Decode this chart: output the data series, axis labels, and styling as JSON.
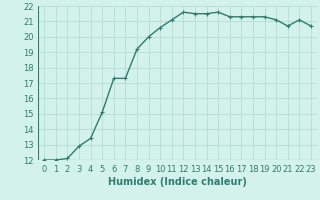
{
  "x": [
    0,
    1,
    2,
    3,
    4,
    5,
    6,
    7,
    8,
    9,
    10,
    11,
    12,
    13,
    14,
    15,
    16,
    17,
    18,
    19,
    20,
    21,
    22,
    23
  ],
  "y": [
    12.0,
    12.0,
    12.1,
    12.9,
    13.4,
    15.1,
    17.3,
    17.3,
    19.2,
    20.0,
    20.6,
    21.1,
    21.6,
    21.5,
    21.5,
    21.6,
    21.3,
    21.3,
    21.3,
    21.3,
    21.1,
    20.7,
    21.1,
    20.7
  ],
  "line_color": "#2e7d6e",
  "marker": "+",
  "bg_color": "#d4f2ec",
  "grid_color": "#aed8d0",
  "xlabel": "Humidex (Indice chaleur)",
  "xlim_min": -0.5,
  "xlim_max": 23.5,
  "ylim_min": 12,
  "ylim_max": 22,
  "yticks": [
    12,
    13,
    14,
    15,
    16,
    17,
    18,
    19,
    20,
    21,
    22
  ],
  "xticks": [
    0,
    1,
    2,
    3,
    4,
    5,
    6,
    7,
    8,
    9,
    10,
    11,
    12,
    13,
    14,
    15,
    16,
    17,
    18,
    19,
    20,
    21,
    22,
    23
  ],
  "xlabel_fontsize": 7,
  "tick_fontsize": 6,
  "line_width": 1.0,
  "marker_size": 3,
  "marker_ew": 0.8
}
